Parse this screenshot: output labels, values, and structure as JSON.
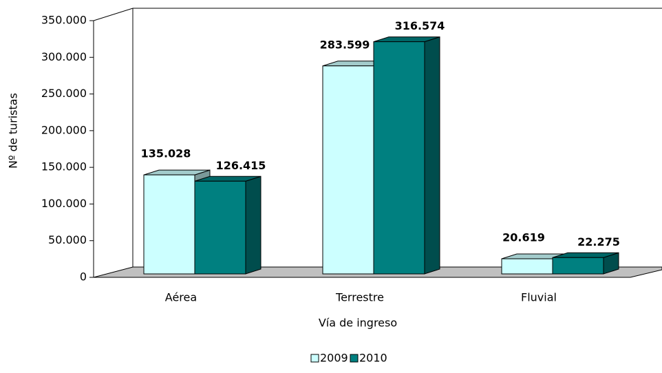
{
  "chart_data": {
    "type": "bar3d",
    "categories": [
      "Aérea",
      "Terrestre",
      "Fluvial"
    ],
    "series": [
      {
        "name": "2009",
        "color": "#ccffff",
        "values": [
          135028,
          283599,
          20619
        ],
        "value_labels": [
          "135.028",
          "283.599",
          "20.619"
        ]
      },
      {
        "name": "2010",
        "color": "#008080",
        "values": [
          126415,
          316574,
          22275
        ],
        "value_labels": [
          "126.415",
          "316.574",
          "22.275"
        ]
      }
    ],
    "ylim": [
      0,
      350000
    ],
    "yticks": [
      0,
      {
        "value": 50000,
        "label": "50.000"
      },
      {
        "value": 100000,
        "label": "100.000"
      },
      {
        "value": 150000,
        "label": "150.000"
      },
      {
        "value": 200000,
        "label": "200.000"
      },
      {
        "value": 250000,
        "label": "250.000"
      },
      {
        "value": 300000,
        "label": "300.000"
      },
      {
        "value": 350000,
        "label": "350.000"
      }
    ],
    "xlabel": "Vía de ingreso",
    "ylabel": "Nº de turistas",
    "legend": "bottom"
  }
}
